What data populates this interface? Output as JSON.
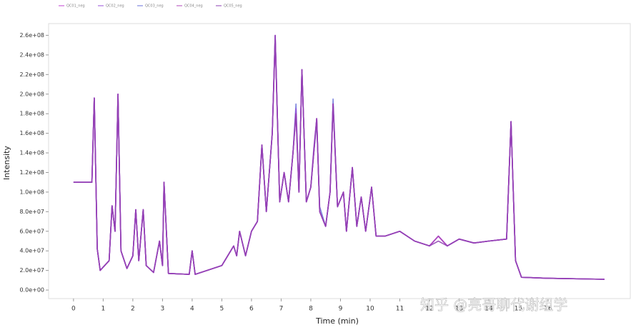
{
  "chart_data": {
    "type": "line",
    "xlabel": "Time (min)",
    "ylabel": "Intensity",
    "annotation": "知乎 @亮哥聊代谢组学",
    "xlim": [
      -0.84,
      18.77
    ],
    "xticks": [
      0,
      1,
      2,
      3,
      4,
      5,
      6,
      7,
      8,
      9,
      10,
      11,
      12,
      13,
      14,
      15,
      16
    ],
    "ylim": [
      -8700000,
      272000000
    ],
    "yticks": [
      {
        "value": 0,
        "label": "0.0e+00"
      },
      {
        "value": 20000000.0,
        "label": "2.0e+07"
      },
      {
        "value": 40000000.0,
        "label": "4.0e+07"
      },
      {
        "value": 60000000.0,
        "label": "6.0e+07"
      },
      {
        "value": 80000000.0,
        "label": "8.0e+07"
      },
      {
        "value": 100000000.0,
        "label": "1.0e+08"
      },
      {
        "value": 120000000.0,
        "label": "1.2e+08"
      },
      {
        "value": 140000000.0,
        "label": "1.4e+08"
      },
      {
        "value": 160000000.0,
        "label": "1.6e+08"
      },
      {
        "value": 180000000.0,
        "label": "1.8e+08"
      },
      {
        "value": 200000000.0,
        "label": "2.0e+08"
      },
      {
        "value": 220000000.0,
        "label": "2.2e+08"
      },
      {
        "value": 240000000.0,
        "label": "2.4e+08"
      },
      {
        "value": 260000000.0,
        "label": "2.6e+08"
      }
    ],
    "grid": false,
    "x": [
      0,
      0.62,
      0.7,
      0.8,
      0.9,
      1.2,
      1.3,
      1.4,
      1.5,
      1.6,
      1.8,
      2.0,
      2.1,
      2.2,
      2.35,
      2.45,
      2.7,
      2.9,
      3.0,
      3.05,
      3.2,
      3.9,
      4.0,
      4.1,
      4.5,
      5.0,
      5.4,
      5.5,
      5.6,
      5.8,
      6.0,
      6.2,
      6.35,
      6.5,
      6.7,
      6.8,
      6.95,
      7.1,
      7.25,
      7.4,
      7.5,
      7.6,
      7.7,
      7.85,
      8.0,
      8.1,
      8.2,
      8.3,
      8.5,
      8.65,
      8.75,
      8.9,
      9.1,
      9.2,
      9.4,
      9.55,
      9.7,
      9.85,
      10.05,
      10.2,
      10.5,
      11.0,
      11.5,
      12.0,
      12.3,
      12.6,
      13.0,
      13.5,
      14.0,
      14.6,
      14.75,
      14.9,
      15.1,
      16.0,
      17.9
    ],
    "series": [
      {
        "name": "QC03_neg",
        "color": "#6a72d8",
        "values": [
          110000000.0,
          110000000.0,
          196000000.0,
          42000000.0,
          20000000.0,
          30000000.0,
          86000000.0,
          60000000.0,
          200000000.0,
          40000000.0,
          22000000.0,
          35000000.0,
          82000000.0,
          30000000.0,
          82000000.0,
          25000000.0,
          18000000.0,
          50000000.0,
          25000000.0,
          110000000.0,
          17000000.0,
          16000000.0,
          40000000.0,
          16000000.0,
          20000000.0,
          25000000.0,
          45000000.0,
          35000000.0,
          60000000.0,
          35000000.0,
          60000000.0,
          70000000.0,
          148000000.0,
          80000000.0,
          160000000.0,
          260000000.0,
          90000000.0,
          120000000.0,
          90000000.0,
          140000000.0,
          190000000.0,
          100000000.0,
          225000000.0,
          90000000.0,
          105000000.0,
          140000000.0,
          170000000.0,
          85000000.0,
          65000000.0,
          100000000.0,
          195000000.0,
          85000000.0,
          100000000.0,
          60000000.0,
          125000000.0,
          65000000.0,
          95000000.0,
          60000000.0,
          105000000.0,
          55000000.0,
          55000000.0,
          60000000.0,
          50000000.0,
          45000000.0,
          55000000.0,
          45000000.0,
          52000000.0,
          48000000.0,
          50000000.0,
          52000000.0,
          172000000.0,
          30000000.0,
          13000000.0,
          12000000.0,
          11000000.0
        ]
      },
      {
        "name": "QC01_neg",
        "color": "#c23fd0",
        "values": [
          110000000.0,
          110000000.0,
          196000000.0,
          42000000.0,
          20000000.0,
          30000000.0,
          86000000.0,
          60000000.0,
          200000000.0,
          40000000.0,
          22000000.0,
          35000000.0,
          82000000.0,
          30000000.0,
          82000000.0,
          25000000.0,
          18000000.0,
          50000000.0,
          25000000.0,
          110000000.0,
          17000000.0,
          16000000.0,
          40000000.0,
          16000000.0,
          20000000.0,
          25000000.0,
          45000000.0,
          35000000.0,
          60000000.0,
          35000000.0,
          60000000.0,
          70000000.0,
          148000000.0,
          80000000.0,
          160000000.0,
          260000000.0,
          90000000.0,
          120000000.0,
          90000000.0,
          140000000.0,
          180000000.0,
          100000000.0,
          225000000.0,
          90000000.0,
          105000000.0,
          140000000.0,
          175000000.0,
          80000000.0,
          65000000.0,
          100000000.0,
          190000000.0,
          85000000.0,
          100000000.0,
          60000000.0,
          125000000.0,
          65000000.0,
          95000000.0,
          60000000.0,
          105000000.0,
          55000000.0,
          55000000.0,
          60000000.0,
          50000000.0,
          45000000.0,
          55000000.0,
          45000000.0,
          52000000.0,
          48000000.0,
          50000000.0,
          52000000.0,
          172000000.0,
          30000000.0,
          13000000.0,
          12000000.0,
          11000000.0
        ]
      },
      {
        "name": "QC02_neg",
        "color": "#9a4fd8",
        "values": [
          110000000.0,
          110000000.0,
          196000000.0,
          42000000.0,
          20000000.0,
          30000000.0,
          86000000.0,
          60000000.0,
          200000000.0,
          40000000.0,
          22000000.0,
          35000000.0,
          82000000.0,
          30000000.0,
          82000000.0,
          25000000.0,
          18000000.0,
          50000000.0,
          25000000.0,
          110000000.0,
          17000000.0,
          16000000.0,
          40000000.0,
          16000000.0,
          20000000.0,
          25000000.0,
          45000000.0,
          35000000.0,
          60000000.0,
          35000000.0,
          60000000.0,
          70000000.0,
          148000000.0,
          80000000.0,
          160000000.0,
          260000000.0,
          90000000.0,
          120000000.0,
          90000000.0,
          140000000.0,
          185000000.0,
          100000000.0,
          225000000.0,
          90000000.0,
          105000000.0,
          145000000.0,
          175000000.0,
          80000000.0,
          65000000.0,
          100000000.0,
          190000000.0,
          85000000.0,
          100000000.0,
          60000000.0,
          125000000.0,
          65000000.0,
          95000000.0,
          60000000.0,
          105000000.0,
          55000000.0,
          55000000.0,
          60000000.0,
          50000000.0,
          45000000.0,
          55000000.0,
          45000000.0,
          52000000.0,
          48000000.0,
          50000000.0,
          52000000.0,
          172000000.0,
          30000000.0,
          13000000.0,
          12000000.0,
          11000000.0
        ]
      },
      {
        "name": "QC04_neg",
        "color": "#b044b8",
        "values": [
          110000000.0,
          110000000.0,
          196000000.0,
          42000000.0,
          20000000.0,
          30000000.0,
          86000000.0,
          60000000.0,
          200000000.0,
          40000000.0,
          22000000.0,
          35000000.0,
          82000000.0,
          30000000.0,
          82000000.0,
          25000000.0,
          18000000.0,
          50000000.0,
          25000000.0,
          110000000.0,
          17000000.0,
          16000000.0,
          40000000.0,
          16000000.0,
          20000000.0,
          25000000.0,
          45000000.0,
          35000000.0,
          60000000.0,
          35000000.0,
          60000000.0,
          70000000.0,
          148000000.0,
          80000000.0,
          160000000.0,
          255000000.0,
          90000000.0,
          120000000.0,
          90000000.0,
          140000000.0,
          180000000.0,
          100000000.0,
          225000000.0,
          90000000.0,
          105000000.0,
          140000000.0,
          175000000.0,
          80000000.0,
          65000000.0,
          100000000.0,
          190000000.0,
          85000000.0,
          100000000.0,
          60000000.0,
          125000000.0,
          65000000.0,
          95000000.0,
          60000000.0,
          105000000.0,
          55000000.0,
          55000000.0,
          60000000.0,
          50000000.0,
          45000000.0,
          55000000.0,
          45000000.0,
          52000000.0,
          48000000.0,
          50000000.0,
          52000000.0,
          172000000.0,
          30000000.0,
          13000000.0,
          12000000.0,
          11000000.0
        ]
      },
      {
        "name": "QC05_neg",
        "color": "#8e3fb3",
        "values": [
          110000000.0,
          110000000.0,
          196000000.0,
          42000000.0,
          20000000.0,
          30000000.0,
          86000000.0,
          60000000.0,
          200000000.0,
          40000000.0,
          22000000.0,
          35000000.0,
          82000000.0,
          30000000.0,
          82000000.0,
          25000000.0,
          18000000.0,
          50000000.0,
          25000000.0,
          110000000.0,
          17000000.0,
          16000000.0,
          40000000.0,
          16000000.0,
          20000000.0,
          25000000.0,
          45000000.0,
          35000000.0,
          60000000.0,
          35000000.0,
          60000000.0,
          70000000.0,
          148000000.0,
          80000000.0,
          160000000.0,
          260000000.0,
          90000000.0,
          120000000.0,
          90000000.0,
          140000000.0,
          180000000.0,
          100000000.0,
          225000000.0,
          90000000.0,
          105000000.0,
          140000000.0,
          175000000.0,
          80000000.0,
          65000000.0,
          100000000.0,
          190000000.0,
          85000000.0,
          100000000.0,
          60000000.0,
          125000000.0,
          65000000.0,
          95000000.0,
          60000000.0,
          105000000.0,
          55000000.0,
          55000000.0,
          60000000.0,
          50000000.0,
          45000000.0,
          50000000.0,
          45000000.0,
          52000000.0,
          48000000.0,
          50000000.0,
          52000000.0,
          172000000.0,
          30000000.0,
          13000000.0,
          12000000.0,
          11000000.0
        ]
      }
    ]
  }
}
